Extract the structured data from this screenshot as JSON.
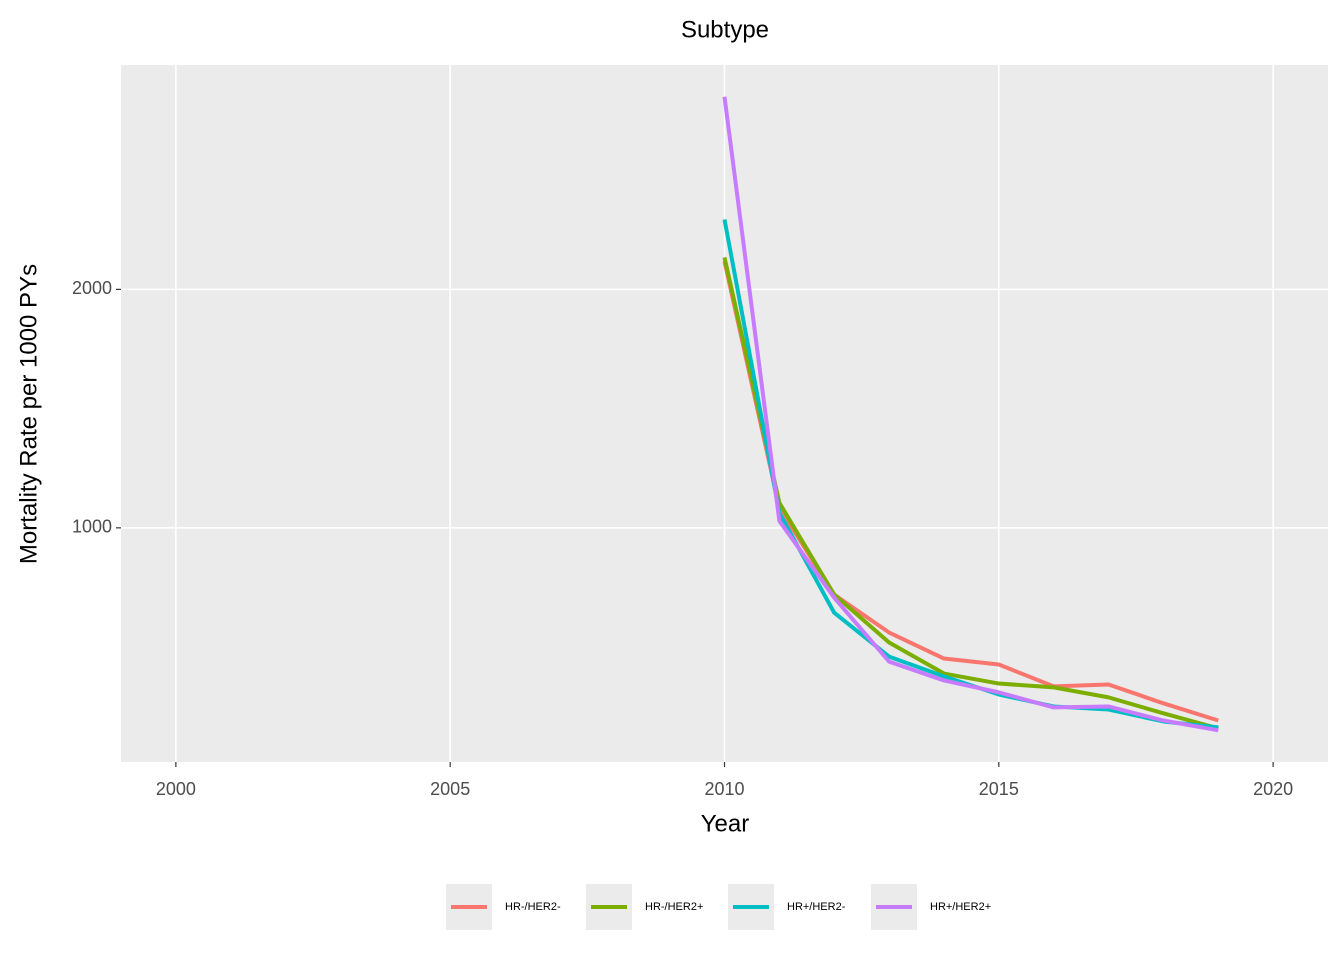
{
  "chart_data": {
    "type": "line",
    "title": "Subtype",
    "x_label": "Year",
    "y_label": "Mortality Rate per 1000 PYs",
    "x": [
      2010,
      2011,
      2012,
      2013,
      2014,
      2015,
      2016,
      2017,
      2018,
      2019
    ],
    "series": [
      {
        "name": "HR-/HER2-",
        "color": "#f8766d",
        "values": [
          2117,
          1084,
          720,
          561,
          452,
          427,
          335,
          343,
          264,
          192
        ]
      },
      {
        "name": "HR-/HER2+",
        "color": "#7cae00",
        "values": [
          2134,
          1105,
          720,
          519,
          389,
          347,
          331,
          289,
          222,
          159
        ]
      },
      {
        "name": "HR+/HER2-",
        "color": "#00bfc4",
        "values": [
          2293,
          1063,
          644,
          460,
          377,
          301,
          251,
          238,
          188,
          163
        ]
      },
      {
        "name": "HR+/HER2+",
        "color": "#c77cff",
        "values": [
          2808,
          1029,
          707,
          439,
          360,
          310,
          247,
          251,
          192,
          151
        ]
      }
    ],
    "xlim": [
      1999,
      2021
    ],
    "xticks": [
      2000,
      2005,
      2010,
      2015,
      2020
    ],
    "ylim": [
      18,
      2941
    ],
    "yticks": [
      1000,
      2000
    ],
    "grid": true,
    "legend": "bottom"
  }
}
